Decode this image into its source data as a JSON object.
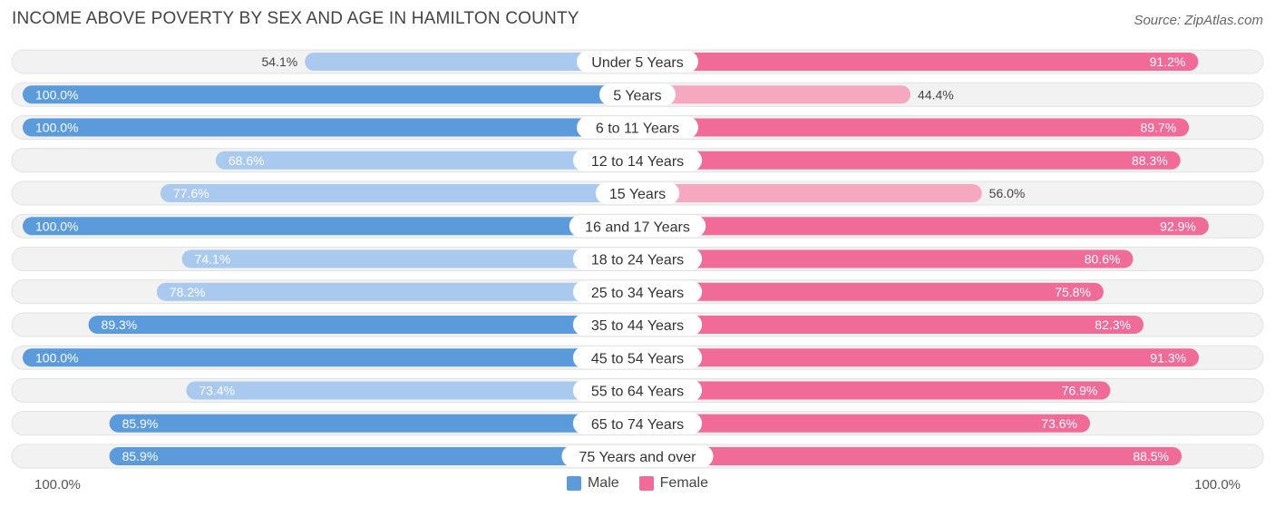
{
  "title": "INCOME ABOVE POVERTY BY SEX AND AGE IN HAMILTON COUNTY",
  "source": "Source: ZipAtlas.com",
  "axis": {
    "left_label": "100.0%",
    "right_label": "100.0%"
  },
  "legend": [
    {
      "label": "Male",
      "color": "#5b9bdc"
    },
    {
      "label": "Female",
      "color": "#f06b98"
    }
  ],
  "colors": {
    "male_strong": "#5b9bdc",
    "male_light": "#a9c9ee",
    "female_strong": "#f06b98",
    "female_light": "#f6a8c1",
    "row_bg": "#f2f2f2",
    "row_border": "#e2e2e2"
  },
  "chart_data": {
    "type": "bar",
    "orientation": "horizontal-diverging",
    "title": "INCOME ABOVE POVERTY BY SEX AND AGE IN HAMILTON COUNTY",
    "categories": [
      "Under 5 Years",
      "5 Years",
      "6 to 11 Years",
      "12 to 14 Years",
      "15 Years",
      "16 and 17 Years",
      "18 to 24 Years",
      "25 to 34 Years",
      "35 to 44 Years",
      "45 to 54 Years",
      "55 to 64 Years",
      "65 to 74 Years",
      "75 Years and over"
    ],
    "series": [
      {
        "name": "Male",
        "values": [
          54.1,
          100.0,
          100.0,
          68.6,
          77.6,
          100.0,
          74.1,
          78.2,
          89.3,
          100.0,
          73.4,
          85.9,
          85.9
        ],
        "labels": [
          "54.1%",
          "100.0%",
          "100.0%",
          "68.6%",
          "77.6%",
          "100.0%",
          "74.1%",
          "78.2%",
          "89.3%",
          "100.0%",
          "73.4%",
          "85.9%",
          "85.9%"
        ]
      },
      {
        "name": "Female",
        "values": [
          91.2,
          44.4,
          89.7,
          88.3,
          56.0,
          92.9,
          80.6,
          75.8,
          82.3,
          91.3,
          76.9,
          73.6,
          88.5
        ],
        "labels": [
          "91.2%",
          "44.4%",
          "89.7%",
          "88.3%",
          "56.0%",
          "92.9%",
          "80.6%",
          "75.8%",
          "82.3%",
          "91.3%",
          "76.9%",
          "73.6%",
          "88.5%"
        ]
      }
    ],
    "xlim": [
      0,
      100
    ],
    "xlabel_left": "100.0%",
    "xlabel_right": "100.0%",
    "legend_position": "bottom-center"
  }
}
